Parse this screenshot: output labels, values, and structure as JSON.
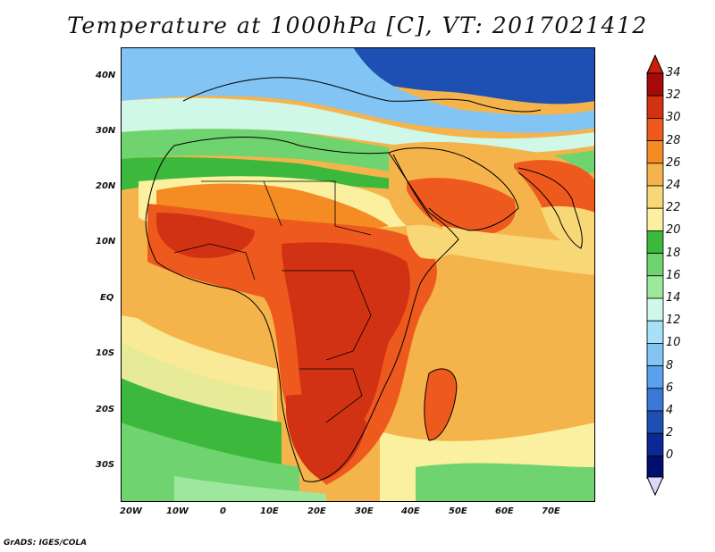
{
  "title": "Temperature at 1000hPa [C], VT: 2017021412",
  "credit": "GrADS: IGES/COLA",
  "map": {
    "lat_labels": [
      "40N",
      "30N",
      "20N",
      "10N",
      "EQ",
      "10S",
      "20S",
      "30S"
    ],
    "lon_labels": [
      "20W",
      "10W",
      "0",
      "10E",
      "20E",
      "30E",
      "40E",
      "50E",
      "60E",
      "70E"
    ],
    "colorbar": {
      "labels": [
        "34",
        "32",
        "30",
        "28",
        "26",
        "24",
        "22",
        "20",
        "18",
        "16",
        "14",
        "12",
        "10",
        "8",
        "6",
        "4",
        "2",
        "0"
      ],
      "colors": [
        "#a50a0a",
        "#d23214",
        "#ee5a1e",
        "#f58b23",
        "#f5b44b",
        "#f8d777",
        "#faf0a0",
        "#3cb93c",
        "#6fd36f",
        "#9ee89e",
        "#d0f8e8",
        "#a8e0f8",
        "#82c4f4",
        "#5aa0ec",
        "#3c78d8",
        "#1e50b4",
        "#0a2896",
        "#000f6e"
      ],
      "top_arrow": "#c81e0a",
      "bottom_arrow": "#dcd8f8"
    }
  }
}
